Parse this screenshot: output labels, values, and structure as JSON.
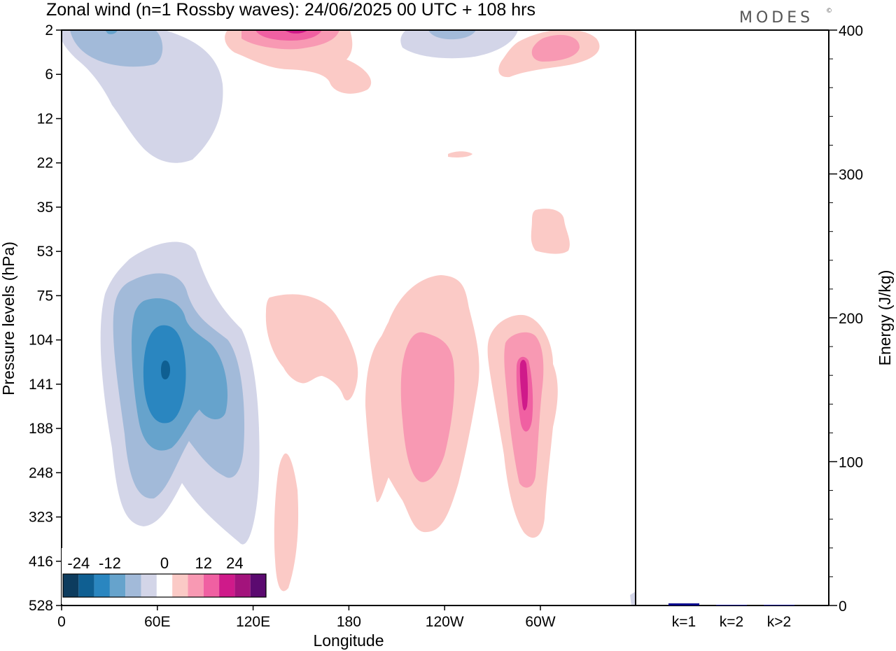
{
  "title": "Zonal wind (n=1 Rossby waves):  24/06/2025  00 UTC  + 108 hrs",
  "brand": "MODES",
  "brand_mark": "©",
  "chart_data": [
    {
      "type": "heatmap",
      "xlabel": "Longitude",
      "ylabel": "Pressure levels (hPa)",
      "x_ticks": [
        "0",
        "60E",
        "120E",
        "180",
        "120W",
        "60W"
      ],
      "x_tick_degrees": [
        0,
        60,
        120,
        180,
        240,
        300
      ],
      "xlim": [
        0,
        360
      ],
      "y_ticks": [
        "2",
        "6",
        "12",
        "22",
        "35",
        "53",
        "75",
        "104",
        "141",
        "188",
        "248",
        "323",
        "416",
        "528"
      ],
      "y_scale": "level index",
      "colorbar": {
        "ticks": [
          "-24",
          "-12",
          "0",
          "12",
          "24"
        ],
        "colors": [
          "#0d3c5e",
          "#0f5f92",
          "#2a86c0",
          "#66a3cc",
          "#a2bad9",
          "#d3d5e8",
          "#ffffff",
          "#fbcac6",
          "#f899b3",
          "#f060a2",
          "#cf1a8a",
          "#a3137c",
          "#5b0a70"
        ]
      },
      "features": [
        {
          "sign": "negative",
          "lon": 65,
          "level_hPa": 122,
          "peak": -24
        },
        {
          "sign": "negative",
          "lon": 50,
          "level_hPa": 3,
          "peak": -6
        },
        {
          "sign": "negative",
          "lon": 238,
          "level_hPa": 2,
          "peak": -6
        },
        {
          "sign": "positive",
          "lon": 150,
          "level_hPa": 110,
          "peak": 6
        },
        {
          "sign": "positive",
          "lon": 140,
          "level_hPa": 400,
          "peak": 6
        },
        {
          "sign": "positive",
          "lon": 240,
          "level_hPa": 160,
          "peak": 12
        },
        {
          "sign": "positive",
          "lon": 290,
          "level_hPa": 141,
          "peak": 18
        },
        {
          "sign": "positive",
          "lon": 290,
          "level_hPa": 45,
          "peak": 6
        },
        {
          "sign": "positive",
          "lon": 150,
          "level_hPa": 2,
          "peak": 18
        },
        {
          "sign": "positive",
          "lon": 300,
          "level_hPa": 3,
          "peak": 12
        }
      ]
    },
    {
      "type": "bar",
      "ylabel": "Energy (J/kg)",
      "categories": [
        "k=1",
        "k=2",
        "k>2"
      ],
      "values": [
        1.5,
        0.3,
        0.5
      ],
      "ylim": [
        0,
        400
      ],
      "y_ticks": [
        "0",
        "100",
        "200",
        "300",
        "400"
      ],
      "y_tick_values": [
        0,
        100,
        200,
        300,
        400
      ],
      "bar_color": "#0a0a8c"
    }
  ]
}
